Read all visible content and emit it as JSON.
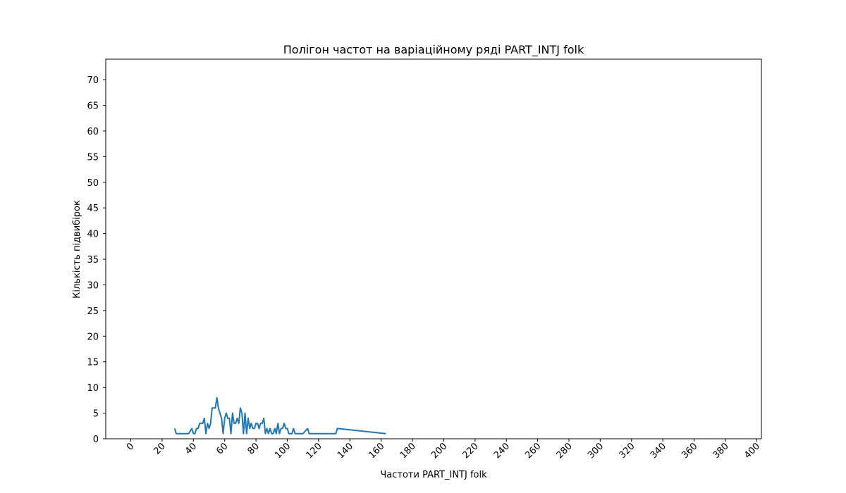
{
  "chart_data": {
    "type": "line",
    "title": "Полігон частот на варіаційному ряді PART_INTJ folk",
    "xlabel": "Частоти PART_INTJ folk",
    "ylabel": "Кількість підвибірок",
    "xlim": [
      -16,
      403
    ],
    "ylim": [
      0,
      74
    ],
    "xticks": [
      0,
      20,
      40,
      60,
      80,
      100,
      120,
      140,
      160,
      180,
      200,
      220,
      240,
      260,
      280,
      300,
      320,
      340,
      360,
      380,
      400
    ],
    "yticks": [
      0,
      5,
      10,
      15,
      20,
      25,
      30,
      35,
      40,
      45,
      50,
      55,
      60,
      65,
      70
    ],
    "grid": false,
    "legend": "none",
    "series": [
      {
        "color": "#1f77b4",
        "x": [
          28,
          29,
          37,
          39,
          40,
          41,
          42,
          43,
          44,
          45,
          46,
          47,
          48,
          49,
          50,
          51,
          52,
          53,
          54,
          55,
          56,
          57,
          58,
          59,
          60,
          61,
          62,
          63,
          64,
          65,
          66,
          67,
          68,
          69,
          70,
          71,
          72,
          73,
          74,
          75,
          76,
          77,
          78,
          79,
          80,
          81,
          82,
          83,
          84,
          85,
          86,
          87,
          88,
          89,
          90,
          91,
          92,
          93,
          94,
          95,
          96,
          97,
          98,
          99,
          100,
          101,
          102,
          103,
          104,
          105,
          108,
          110,
          113,
          114,
          131,
          132,
          163
        ],
        "y": [
          2,
          1,
          1,
          2,
          1,
          1,
          2,
          2,
          3,
          3,
          3,
          4,
          1,
          3,
          2,
          3,
          6,
          6,
          6,
          8,
          6,
          5,
          4,
          1,
          4,
          5,
          4,
          4,
          1,
          5,
          3,
          3,
          4,
          3,
          6,
          5,
          1,
          5,
          1,
          4,
          2,
          3,
          2,
          2,
          3,
          3,
          2,
          3,
          3,
          4,
          1,
          2,
          1,
          2,
          1,
          1,
          2,
          1,
          3,
          1,
          2,
          2,
          3,
          2,
          2,
          1,
          1,
          1,
          2,
          1,
          1,
          1,
          2,
          1,
          1,
          2,
          1
        ]
      }
    ]
  }
}
